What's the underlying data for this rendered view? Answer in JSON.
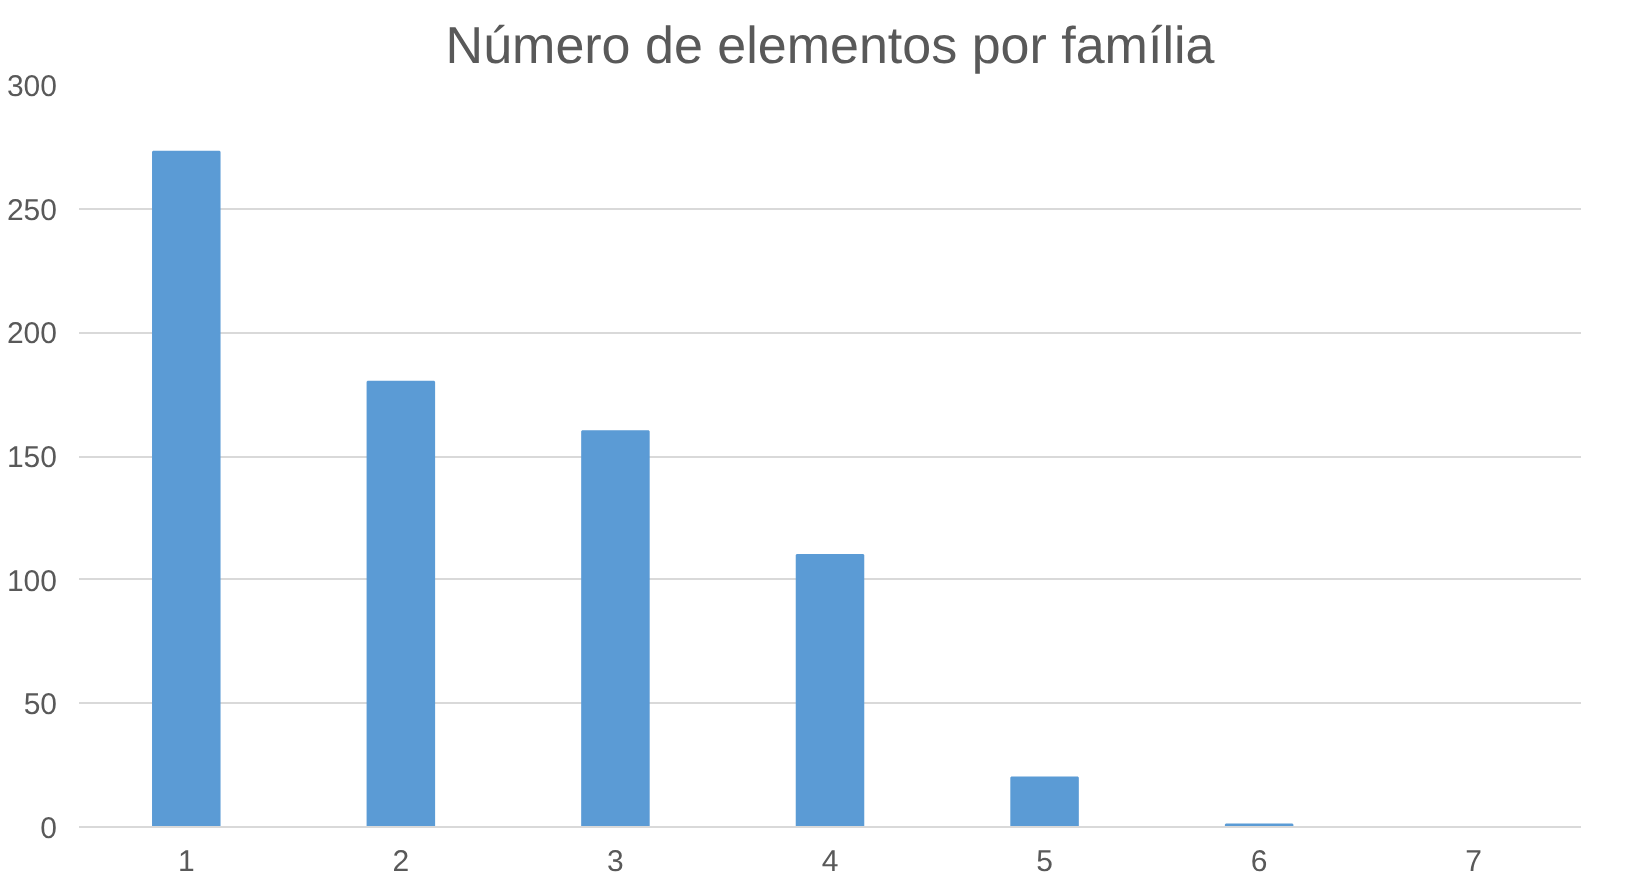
{
  "chart_data": {
    "type": "bar",
    "title": "Número de elementos por família",
    "categories": [
      "1",
      "2",
      "3",
      "4",
      "5",
      "6",
      "7"
    ],
    "values": [
      273,
      180,
      160,
      110,
      20,
      1,
      0
    ],
    "color": "#5b9bd5",
    "ylim": [
      0,
      300
    ],
    "yticks": [
      0,
      50,
      100,
      150,
      200,
      250,
      300
    ],
    "grid": "y"
  }
}
